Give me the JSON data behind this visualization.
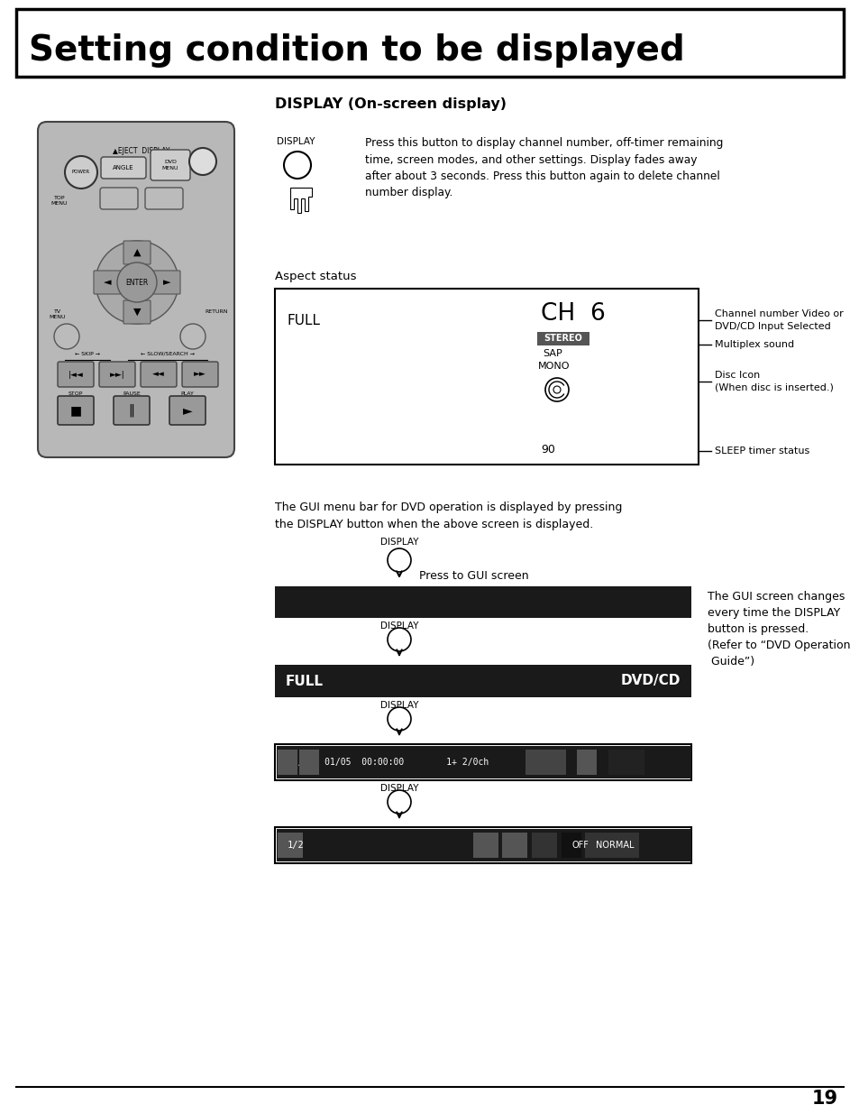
{
  "title": "Setting condition to be displayed",
  "section_title": "DISPLAY (On-screen display)",
  "display_desc": "Press this button to display channel number, off-timer remaining\ntime, screen modes, and other settings. Display fades away\nafter about 3 seconds. Press this button again to delete channel\nnumber display.",
  "aspect_label": "Aspect status",
  "screen1_full": "FULL",
  "screen1_ch": "CH  6",
  "screen1_stereo": "STEREO",
  "screen1_sap": "SAP",
  "screen1_mono": "MONO",
  "screen1_90": "90",
  "anno1": "Channel number Video or\nDVD/CD Input Selected",
  "anno2": "Multiplex sound",
  "anno3": "Disc Icon\n(When disc is inserted.)",
  "anno4": "SLEEP timer status",
  "gui_desc": "The GUI menu bar for DVD operation is displayed by pressing\nthe DISPLAY button when the above screen is displayed.",
  "gui_note": "The GUI screen changes\nevery time the DISPLAY\nbutton is pressed.\n(Refer to “DVD Operation\n Guide”)",
  "press_gui": "Press to GUI screen",
  "screen2_full": "FULL",
  "screen2_dvdcd": "DVD/CD",
  "page_num": "19",
  "bg_color": "#ffffff",
  "text_color": "#000000",
  "stereo_bg": "#555555",
  "screen_bg": "#1a1a1a",
  "remote_bg": "#b8b8b8",
  "display_label": "DISPLAY"
}
